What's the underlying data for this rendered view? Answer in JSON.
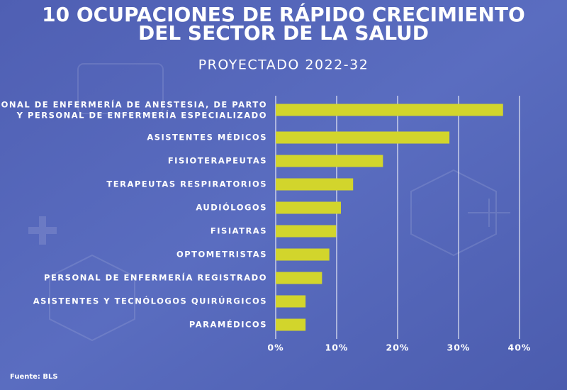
{
  "chart_data": {
    "type": "hbar",
    "title": "10 OCUPACIONES DE RÁPIDO CRECIMIENTO\nDEL SECTOR DE LA SALUD",
    "subtitle": "PROYECTADO 2022-32",
    "source": "Fuente: BLS",
    "categories": [
      "PERSONAL DE ENFERMERÍA DE ANESTESIA, DE PARTO\nY PERSONAL DE ENFERMERÍA ESPECIALIZADO",
      "ASISTENTES MÉDICOS",
      "FISIOTERAPEUTAS",
      "TERAPEUTAS RESPIRATORIOS",
      "AUDIÓLOGOS",
      "FISIATRAS",
      "OPTOMETRISTAS",
      "PERSONAL DE ENFERMERÍA REGISTRADO",
      "ASISTENTES Y TECNÓLOGOS QUIRÚRGICOS",
      "PARAMÉDICOS"
    ],
    "values": [
      37.3,
      28.5,
      17.6,
      12.7,
      10.7,
      9.9,
      8.8,
      7.6,
      4.9,
      4.9
    ],
    "color": "#d2d52c",
    "xlim": [
      0,
      40
    ],
    "xticks": [
      {
        "value": 0,
        "label": "0%"
      },
      {
        "value": 10,
        "label": "10%"
      },
      {
        "value": 20,
        "label": "20%"
      },
      {
        "value": 30,
        "label": "30%"
      },
      {
        "value": 40,
        "label": "40%"
      }
    ],
    "grid": true
  }
}
